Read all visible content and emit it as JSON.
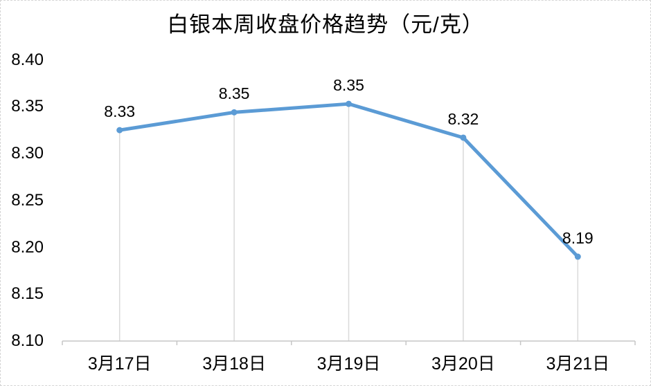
{
  "chart_data": {
    "type": "line",
    "title": "白银本周收盘价格趋势（元/克）",
    "categories": [
      "3月17日",
      "3月18日",
      "3月19日",
      "3月20日",
      "3月21日"
    ],
    "values": [
      8.33,
      8.35,
      8.35,
      8.32,
      8.19
    ],
    "data_labels": [
      "8.33",
      "8.35",
      "8.35",
      "8.32",
      "8.19"
    ],
    "plotted_values_estimate": [
      8.325,
      8.344,
      8.353,
      8.317,
      8.19
    ],
    "y_ticks": [
      "8.40",
      "8.35",
      "8.30",
      "8.25",
      "8.20",
      "8.15",
      "8.10"
    ],
    "ylim": [
      8.1,
      8.4
    ],
    "xlabel": "",
    "ylabel": "",
    "grid": false,
    "legend": "none",
    "data_label_position": "above",
    "colors": {
      "line": "#5B9BD5",
      "marker": "#5B9BD5",
      "droplines": "#D9D9D9",
      "axis": "#C6C6C6",
      "text": "#000000",
      "canvas_border": "#D4D4D4"
    }
  }
}
